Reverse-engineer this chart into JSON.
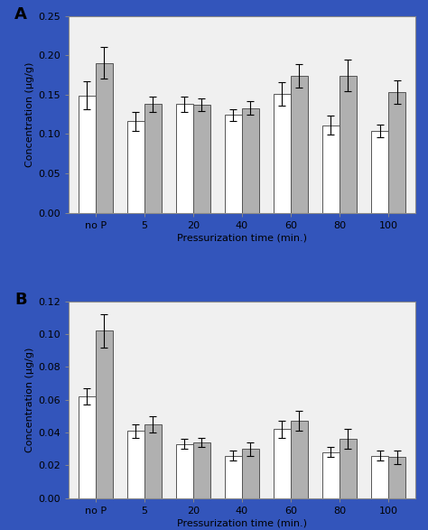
{
  "panel_A": {
    "categories": [
      "no P",
      "5",
      "20",
      "40",
      "60",
      "80",
      "100"
    ],
    "white_vals": [
      0.149,
      0.116,
      0.138,
      0.124,
      0.151,
      0.111,
      0.104
    ],
    "gray_vals": [
      0.19,
      0.138,
      0.137,
      0.133,
      0.174,
      0.174,
      0.153
    ],
    "white_err": [
      0.018,
      0.012,
      0.01,
      0.007,
      0.015,
      0.012,
      0.008
    ],
    "gray_err": [
      0.02,
      0.01,
      0.008,
      0.009,
      0.015,
      0.02,
      0.015
    ],
    "ylabel": "Concentration (µg/g)",
    "xlabel": "Pressurization time (min.)",
    "ylim": [
      0,
      0.25
    ],
    "yticks": [
      0.0,
      0.05,
      0.1,
      0.15,
      0.2,
      0.25
    ],
    "label": "A"
  },
  "panel_B": {
    "categories": [
      "no P",
      "5",
      "20",
      "40",
      "60",
      "80",
      "100"
    ],
    "white_vals": [
      0.062,
      0.041,
      0.033,
      0.026,
      0.042,
      0.028,
      0.026
    ],
    "gray_vals": [
      0.102,
      0.045,
      0.034,
      0.03,
      0.047,
      0.036,
      0.025
    ],
    "white_err": [
      0.005,
      0.004,
      0.003,
      0.003,
      0.005,
      0.003,
      0.003
    ],
    "gray_err": [
      0.01,
      0.005,
      0.003,
      0.004,
      0.006,
      0.006,
      0.004
    ],
    "ylabel": "Concentration (µg/g)",
    "xlabel": "Pressurization time (min.)",
    "ylim": [
      0,
      0.12
    ],
    "yticks": [
      0,
      0.02,
      0.04,
      0.06,
      0.08,
      0.1,
      0.12
    ],
    "label": "B"
  },
  "bar_width": 0.35,
  "white_color": "#ffffff",
  "gray_color": "#b0b0b0",
  "bar_edge_color": "#555555",
  "plot_bg_color": "#f0f0f0",
  "outer_bg_color": "#3355bb",
  "fig_bg_color": "#dde0ee"
}
